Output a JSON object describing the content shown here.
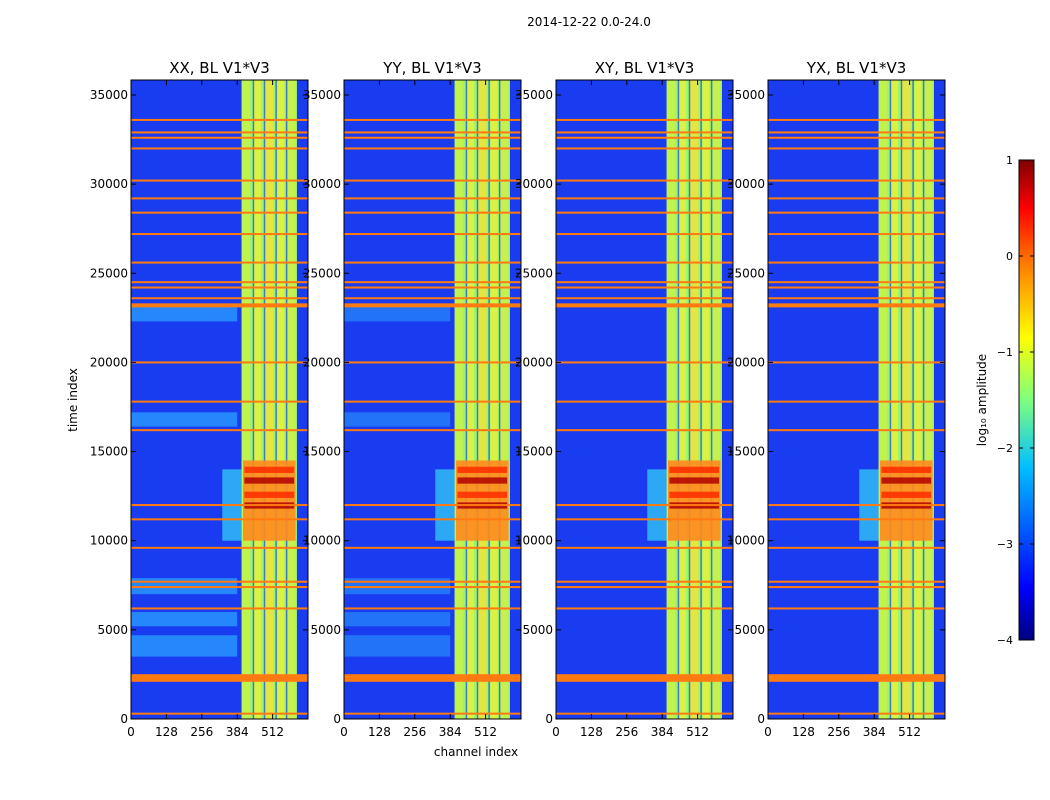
{
  "chart_data": {
    "type": "heatmap",
    "suptitle": "2014-12-22 0.0-24.0",
    "xlabel": "channel index",
    "ylabel": "time index",
    "xlim": [
      0,
      640
    ],
    "ylim": [
      0,
      35840
    ],
    "x_ticks": [
      0,
      128,
      256,
      384,
      512
    ],
    "y_ticks": [
      0,
      5000,
      10000,
      15000,
      20000,
      25000,
      30000,
      35000
    ],
    "colorbar": {
      "label": "log₁₀ amplitude",
      "range": [
        -4,
        1
      ],
      "ticks": [
        1,
        0,
        -1,
        -2,
        -3,
        -4
      ],
      "tick_labels": [
        "1",
        "0",
        "−1",
        "−2",
        "−3",
        "−4"
      ],
      "colors": [
        "#00007f",
        "#0000ff",
        "#00bfff",
        "#7fff7f",
        "#ffff00",
        "#ff7f00",
        "#ff0000",
        "#7f0000"
      ]
    },
    "panels": [
      {
        "title": "XX, BL V1*V3",
        "y_tick_labels": [
          "0",
          "5000",
          "10000",
          "15000",
          "20000",
          "25000",
          "30000",
          "35000"
        ]
      },
      {
        "title": "YY, BL V1*V3",
        "y_tick_labels": [
          "0",
          "5000",
          "10000",
          "15000",
          "20000",
          "25000",
          "30000",
          "35000"
        ]
      },
      {
        "title": "XY, BL V1*V3",
        "y_tick_labels": [
          "0",
          "5000",
          "10000",
          "15000",
          "20000",
          "25000",
          "30000",
          "35000"
        ]
      },
      {
        "title": "YX, BL V1*V3",
        "y_tick_labels": [
          "0",
          "5000",
          "10000",
          "15000",
          "20000",
          "25000",
          "30000",
          "35000"
        ]
      }
    ],
    "x_tick_labels": [
      "0",
      "128",
      "256",
      "384",
      "512"
    ],
    "bright_channel_band": [
      400,
      600
    ],
    "rfi_time_rows": [
      300,
      2200,
      2400,
      6200,
      7400,
      7700,
      9600,
      11200,
      12000,
      16200,
      17800,
      20000,
      23200,
      23600,
      24200,
      24500,
      25600,
      27200,
      28400,
      29200,
      30200,
      32000,
      32600,
      32900,
      33600
    ],
    "strong_emission_time_range": [
      10000,
      14500
    ]
  }
}
